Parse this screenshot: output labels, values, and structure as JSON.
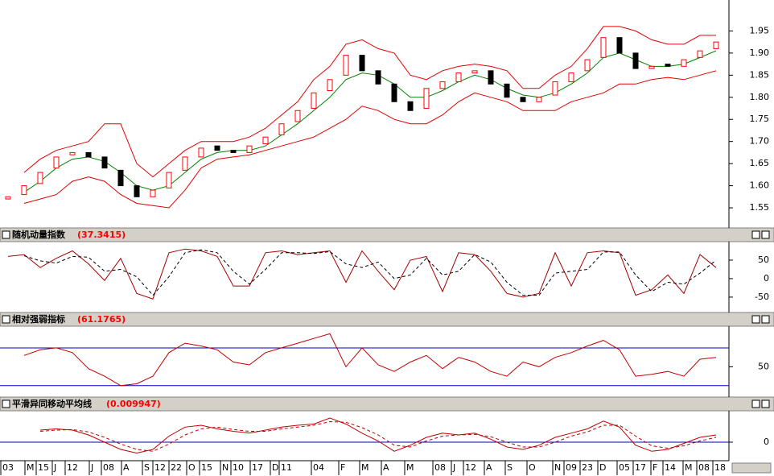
{
  "chart_data": [
    {
      "type": "candlestick",
      "xlim": [
        -0.5,
        44.8
      ],
      "ylim": [
        1.51,
        2.02
      ],
      "yticks": [
        1.55,
        {
          "value": 1.6,
          "label": "1.60"
        },
        1.65,
        {
          "value": 1.7,
          "label": "1.70"
        },
        1.75,
        {
          "value": 1.8,
          "label": "1.80"
        },
        1.85,
        {
          "value": 1.9,
          "label": "1.90"
        },
        1.95
      ],
      "up_color": "#ff0000",
      "down_color": "#000000",
      "open": [
        1.57,
        1.58,
        1.605,
        1.64,
        1.67,
        1.675,
        1.665,
        1.635,
        1.6,
        1.575,
        1.595,
        1.635,
        1.665,
        1.69,
        1.68,
        1.675,
        1.695,
        1.715,
        1.745,
        1.775,
        1.815,
        1.85,
        1.895,
        1.86,
        1.83,
        1.79,
        1.775,
        1.82,
        1.835,
        1.855,
        1.86,
        1.83,
        1.8,
        1.79,
        1.805,
        1.835,
        1.86,
        1.89,
        1.935,
        1.9,
        1.865,
        1.875,
        1.87,
        1.89,
        1.91
      ],
      "close": [
        1.575,
        1.6,
        1.63,
        1.665,
        1.675,
        1.665,
        1.64,
        1.6,
        1.575,
        1.59,
        1.63,
        1.665,
        1.685,
        1.68,
        1.675,
        1.69,
        1.71,
        1.74,
        1.77,
        1.81,
        1.84,
        1.895,
        1.86,
        1.83,
        1.79,
        1.77,
        1.82,
        1.835,
        1.855,
        1.86,
        1.83,
        1.8,
        1.79,
        1.8,
        1.835,
        1.855,
        1.885,
        1.935,
        1.9,
        1.865,
        1.87,
        1.87,
        1.885,
        1.905,
        1.925
      ],
      "series": [
        {
          "color": "#e00000",
          "values": [
            null,
            1.63,
            1.66,
            1.68,
            1.69,
            1.7,
            1.74,
            1.74,
            1.65,
            1.62,
            1.65,
            1.68,
            1.7,
            1.7,
            1.7,
            1.71,
            1.73,
            1.76,
            1.79,
            1.84,
            1.87,
            1.92,
            1.93,
            1.91,
            1.9,
            1.85,
            1.84,
            1.86,
            1.87,
            1.875,
            1.87,
            1.86,
            1.82,
            1.82,
            1.85,
            1.87,
            1.91,
            1.96,
            1.96,
            1.95,
            1.93,
            1.92,
            1.92,
            1.94,
            1.94
          ]
        },
        {
          "color": "#e00000",
          "values": [
            null,
            1.56,
            1.57,
            1.58,
            1.61,
            1.62,
            1.61,
            1.58,
            1.56,
            1.555,
            1.55,
            1.59,
            1.64,
            1.66,
            1.665,
            1.67,
            1.68,
            1.69,
            1.7,
            1.71,
            1.73,
            1.75,
            1.78,
            1.77,
            1.75,
            1.74,
            1.74,
            1.76,
            1.79,
            1.81,
            1.8,
            1.79,
            1.77,
            1.77,
            1.77,
            1.79,
            1.8,
            1.81,
            1.83,
            1.83,
            1.84,
            1.845,
            1.84,
            1.85,
            1.86
          ]
        },
        {
          "color": "#008000",
          "values": [
            null,
            1.585,
            1.61,
            1.64,
            1.66,
            1.665,
            1.655,
            1.63,
            1.6,
            1.59,
            1.6,
            1.63,
            1.66,
            1.675,
            1.68,
            1.68,
            1.69,
            1.715,
            1.74,
            1.77,
            1.8,
            1.84,
            1.855,
            1.85,
            1.83,
            1.8,
            1.8,
            1.815,
            1.835,
            1.85,
            1.84,
            1.82,
            1.805,
            1.8,
            1.81,
            1.83,
            1.855,
            1.89,
            1.9,
            1.885,
            1.87,
            1.87,
            1.875,
            1.89,
            1.905
          ]
        }
      ]
    },
    {
      "type": "line",
      "title": "随机动量指数",
      "current": "(37.3415)",
      "xlim": [
        -0.5,
        44.8
      ],
      "ylim": [
        -85,
        100
      ],
      "yticks": [
        50,
        0,
        -50
      ],
      "series": [
        {
          "color": "#a00000",
          "dashed": false,
          "values": [
            60,
            65,
            30,
            55,
            75,
            40,
            -5,
            55,
            -40,
            -55,
            70,
            80,
            75,
            60,
            -20,
            -20,
            70,
            75,
            65,
            70,
            75,
            -10,
            75,
            20,
            -30,
            50,
            60,
            -35,
            70,
            65,
            20,
            -40,
            -50,
            -40,
            70,
            -20,
            70,
            75,
            70,
            -45,
            -30,
            10,
            -40,
            65,
            30
          ]
        },
        {
          "color": "#000000",
          "dashed": true,
          "values": [
            null,
            62,
            48,
            42,
            60,
            58,
            20,
            25,
            5,
            -45,
            5,
            70,
            78,
            70,
            20,
            -15,
            25,
            70,
            70,
            68,
            73,
            40,
            30,
            45,
            0,
            10,
            55,
            10,
            20,
            65,
            45,
            -10,
            -45,
            -45,
            15,
            20,
            25,
            72,
            72,
            10,
            -35,
            -10,
            -15,
            15,
            50
          ]
        }
      ]
    },
    {
      "type": "line",
      "title": "相对强弱指标",
      "current": "(61.1765)",
      "xlim": [
        -0.5,
        44.8
      ],
      "ylim": [
        23,
        93
      ],
      "yticks": [
        50
      ],
      "hlines": [
        30,
        70
      ],
      "hline_color": "#0000c0",
      "series": [
        {
          "color": "#c00000",
          "dashed": false,
          "values": [
            null,
            62,
            68,
            70,
            65,
            48,
            40,
            30,
            32,
            40,
            65,
            75,
            72,
            68,
            55,
            52,
            65,
            70,
            75,
            80,
            85,
            50,
            70,
            52,
            45,
            55,
            62,
            48,
            60,
            55,
            45,
            40,
            55,
            50,
            60,
            65,
            72,
            78,
            68,
            40,
            42,
            45,
            40,
            58,
            60
          ]
        }
      ]
    },
    {
      "type": "line",
      "title": "平滑异同移动平均线",
      "current": "(0.009947)",
      "xlim": [
        -0.5,
        44.8
      ],
      "ylim": [
        -0.028,
        0.052
      ],
      "yticks": [
        0
      ],
      "hlines": [
        0
      ],
      "hline_color": "#0000c0",
      "xticks": [
        {
          "value": -0.45,
          "label": "03"
        },
        {
          "value": 1.05,
          "label": "M"
        },
        {
          "value": 1.75,
          "label": "15"
        },
        {
          "value": 2.75,
          "label": "J"
        },
        {
          "value": 3.55,
          "label": "12"
        },
        {
          "value": 5.05,
          "label": "J"
        },
        {
          "value": 5.8,
          "label": "08"
        },
        {
          "value": 7.05,
          "label": "A"
        },
        {
          "value": 8.35,
          "label": "S"
        },
        {
          "value": 9.0,
          "label": "12"
        },
        {
          "value": 10.0,
          "label": "22"
        },
        {
          "value": 11.1,
          "label": "O"
        },
        {
          "value": 11.9,
          "label": "15"
        },
        {
          "value": 13.2,
          "label": "N"
        },
        {
          "value": 13.85,
          "label": "10"
        },
        {
          "value": 15.05,
          "label": "17"
        },
        {
          "value": 16.3,
          "label": "D"
        },
        {
          "value": 16.85,
          "label": "11"
        },
        {
          "value": 18.85,
          "label": "04"
        },
        {
          "value": 20.55,
          "label": "F"
        },
        {
          "value": 21.85,
          "label": "M"
        },
        {
          "value": 23.2,
          "label": "A"
        },
        {
          "value": 24.65,
          "label": "M"
        },
        {
          "value": 26.4,
          "label": "08"
        },
        {
          "value": 27.55,
          "label": "J"
        },
        {
          "value": 28.3,
          "label": "12"
        },
        {
          "value": 29.6,
          "label": "A"
        },
        {
          "value": 30.9,
          "label": "S"
        },
        {
          "value": 32.25,
          "label": "O"
        },
        {
          "value": 33.85,
          "label": "N"
        },
        {
          "value": 34.55,
          "label": "09"
        },
        {
          "value": 35.55,
          "label": "23"
        },
        {
          "value": 36.65,
          "label": "D"
        },
        {
          "value": 37.85,
          "label": "05"
        },
        {
          "value": 38.85,
          "label": "17"
        },
        {
          "value": 39.95,
          "label": "F"
        },
        {
          "value": 40.7,
          "label": "14"
        },
        {
          "value": 41.95,
          "label": "M"
        },
        {
          "value": 42.8,
          "label": "08"
        },
        {
          "value": 43.8,
          "label": "18"
        }
      ],
      "series": [
        {
          "color": "#c00000",
          "dashed": false,
          "values": [
            null,
            null,
            0.02,
            0.022,
            0.02,
            0.012,
            0.0,
            -0.012,
            -0.018,
            -0.012,
            0.01,
            0.025,
            0.028,
            0.022,
            0.018,
            0.015,
            0.02,
            0.025,
            0.028,
            0.03,
            0.04,
            0.03,
            0.015,
            0.002,
            -0.015,
            -0.005,
            0.008,
            0.015,
            0.012,
            0.015,
            0.005,
            -0.008,
            -0.012,
            -0.005,
            0.008,
            0.015,
            0.022,
            0.035,
            0.025,
            -0.005,
            -0.015,
            -0.012,
            -0.002,
            0.008,
            0.012
          ]
        },
        {
          "color": "#c00000",
          "dashed": true,
          "values": [
            null,
            null,
            0.018,
            0.02,
            0.021,
            0.017,
            0.008,
            -0.003,
            -0.012,
            -0.015,
            -0.003,
            0.012,
            0.022,
            0.025,
            0.021,
            0.018,
            0.018,
            0.022,
            0.025,
            0.028,
            0.034,
            0.033,
            0.024,
            0.012,
            -0.005,
            -0.008,
            0.002,
            0.01,
            0.012,
            0.013,
            0.009,
            0.0,
            -0.008,
            -0.008,
            0.0,
            0.01,
            0.017,
            0.028,
            0.028,
            0.01,
            -0.006,
            -0.01,
            -0.006,
            0.002,
            0.008
          ]
        }
      ]
    }
  ]
}
